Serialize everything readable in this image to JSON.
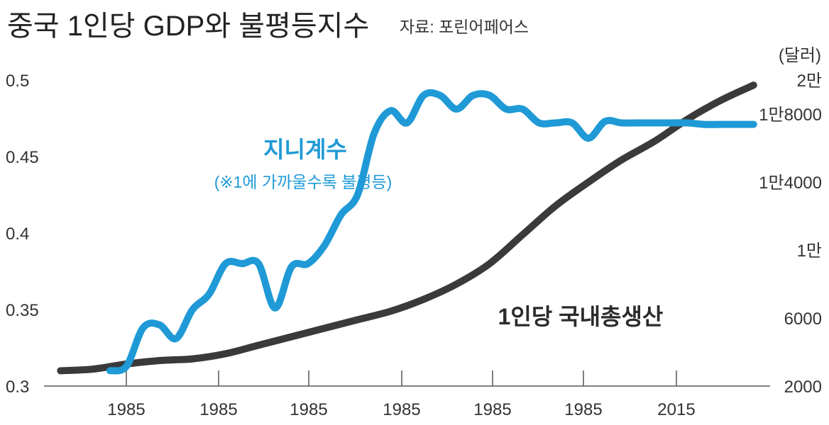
{
  "chart_data": {
    "type": "line",
    "title": "중국 1인당 GDP와 불평등지수",
    "source": "자료: 포린어페어스",
    "x_ticks": [
      "1985",
      "1985",
      "1985",
      "1985",
      "1985",
      "1985",
      "2015"
    ],
    "x": [
      1978,
      1980,
      1982,
      1984,
      1986,
      1988,
      1990,
      1992,
      1994,
      1996,
      1998,
      2000,
      2002,
      2004,
      2006,
      2008,
      2010,
      2012,
      2014,
      2016,
      2018,
      2020
    ],
    "xlim": [
      1977,
      2021
    ],
    "y_left": {
      "label": "",
      "ylim": [
        0.3,
        0.5
      ],
      "ticks": [
        "0.3",
        "0.35",
        "0.4",
        "0.45",
        "0.5"
      ]
    },
    "y_right": {
      "label": "(달러)",
      "ylim": [
        2000,
        20000
      ],
      "ticks": [
        "2000",
        "6000",
        "1만",
        "1만4000",
        "1만8000",
        "2만"
      ]
    },
    "series": [
      {
        "name": "지니계수",
        "note": "(※1에 가까울수록 불평등)",
        "axis": "left",
        "color": "#1f9ad6",
        "x": [
          1981,
          1982,
          1983,
          1984,
          1985,
          1986,
          1987,
          1988,
          1989,
          1990,
          1991,
          1992,
          1993,
          1994,
          1995,
          1996,
          1997,
          1998,
          1999,
          2000,
          2001,
          2002,
          2003,
          2004,
          2005,
          2006,
          2007,
          2008,
          2009,
          2010,
          2011,
          2012,
          2013,
          2014,
          2015,
          2016,
          2017,
          2018,
          2019,
          2020
        ],
        "values": [
          0.31,
          0.313,
          0.338,
          0.34,
          0.331,
          0.35,
          0.36,
          0.38,
          0.38,
          0.38,
          0.351,
          0.378,
          0.38,
          0.392,
          0.412,
          0.425,
          0.465,
          0.48,
          0.472,
          0.49,
          0.49,
          0.481,
          0.49,
          0.49,
          0.481,
          0.481,
          0.472,
          0.472,
          0.472,
          0.462,
          0.473,
          0.472,
          0.472,
          0.472,
          0.472,
          0.472,
          0.471,
          0.471,
          0.471,
          0.471
        ]
      },
      {
        "name": "1인당 국내총생산",
        "axis": "right",
        "color": "#3a3a3a",
        "x": [
          1978,
          1980,
          1982,
          1984,
          1986,
          1988,
          1990,
          1992,
          1994,
          1996,
          1998,
          2000,
          2002,
          2004,
          2006,
          2008,
          2010,
          2012,
          2014,
          2016,
          2018,
          2020
        ],
        "values": [
          2900,
          3000,
          3300,
          3500,
          3600,
          3900,
          4400,
          4900,
          5400,
          5900,
          6400,
          7100,
          8000,
          9200,
          10900,
          12600,
          14000,
          15300,
          16400,
          17700,
          18800,
          19700
        ]
      }
    ]
  }
}
